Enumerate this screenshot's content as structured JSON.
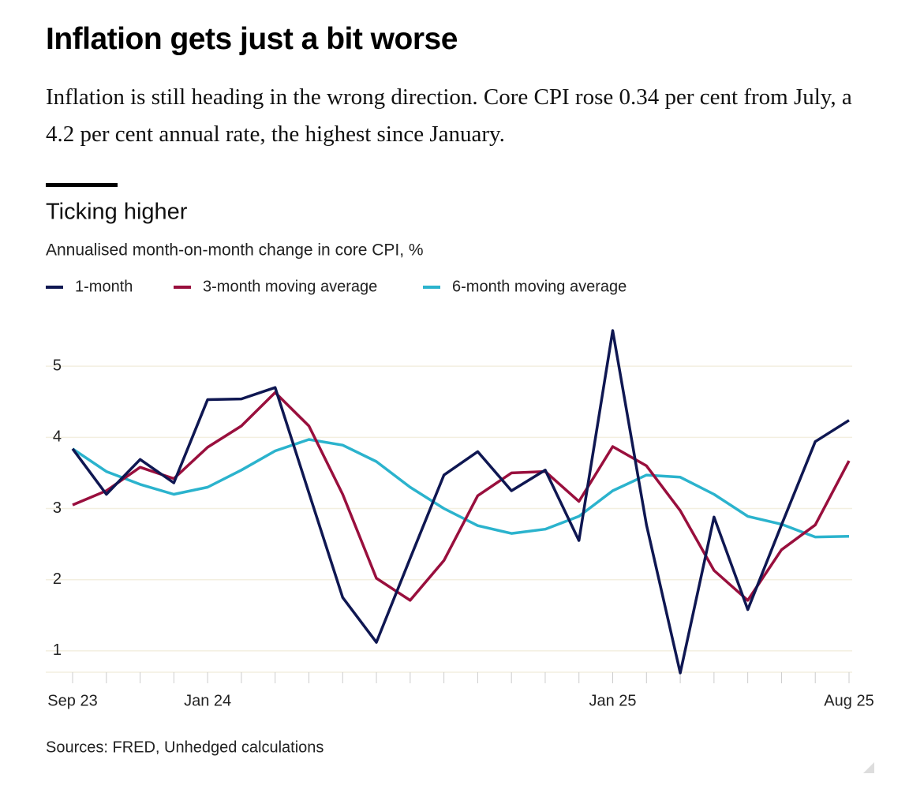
{
  "headline": "Inflation gets just a bit worse",
  "deck": "Inflation is still heading in the wrong direction. Core CPI rose 0.34 per cent from July, a 4.2 per cent annual rate, the highest since January.",
  "chart_data": {
    "type": "line",
    "title": "Ticking higher",
    "subtitle": "Annualised month-on-month change in core CPI, %",
    "source": "Sources: FRED, Unhedged calculations",
    "categories": [
      "Sep 23",
      null,
      null,
      null,
      "Jan 24",
      null,
      null,
      null,
      null,
      null,
      null,
      null,
      null,
      null,
      null,
      null,
      "Jan 25",
      null,
      null,
      null,
      null,
      null,
      null,
      "Aug 25"
    ],
    "series": [
      {
        "name": "1-month",
        "color": "#0f1752",
        "values": [
          3.84,
          3.2,
          3.69,
          3.36,
          4.53,
          4.54,
          4.7,
          3.22,
          1.75,
          1.12,
          2.3,
          3.47,
          3.8,
          3.25,
          3.54,
          2.55,
          5.5,
          2.77,
          0.69,
          2.88,
          1.58,
          2.77,
          3.94,
          4.24
        ]
      },
      {
        "name": "3-month moving average",
        "color": "#990f3d",
        "values": [
          3.05,
          3.25,
          3.58,
          3.42,
          3.86,
          4.16,
          4.63,
          4.16,
          3.2,
          2.02,
          1.71,
          2.27,
          3.18,
          3.5,
          3.52,
          3.1,
          3.87,
          3.6,
          2.97,
          2.13,
          1.71,
          2.42,
          2.77,
          3.67
        ]
      },
      {
        "name": "6-month moving average",
        "color": "#2bb3cd",
        "values": [
          3.84,
          3.52,
          3.34,
          3.2,
          3.3,
          3.54,
          3.81,
          3.97,
          3.89,
          3.66,
          3.3,
          3.0,
          2.76,
          2.65,
          2.71,
          2.89,
          3.25,
          3.47,
          3.44,
          3.2,
          2.89,
          2.78,
          2.6,
          2.61
        ]
      }
    ],
    "ylim": [
      0.6,
      5.6
    ],
    "yticks": [
      1,
      2,
      3,
      4,
      5
    ],
    "grid": true
  }
}
